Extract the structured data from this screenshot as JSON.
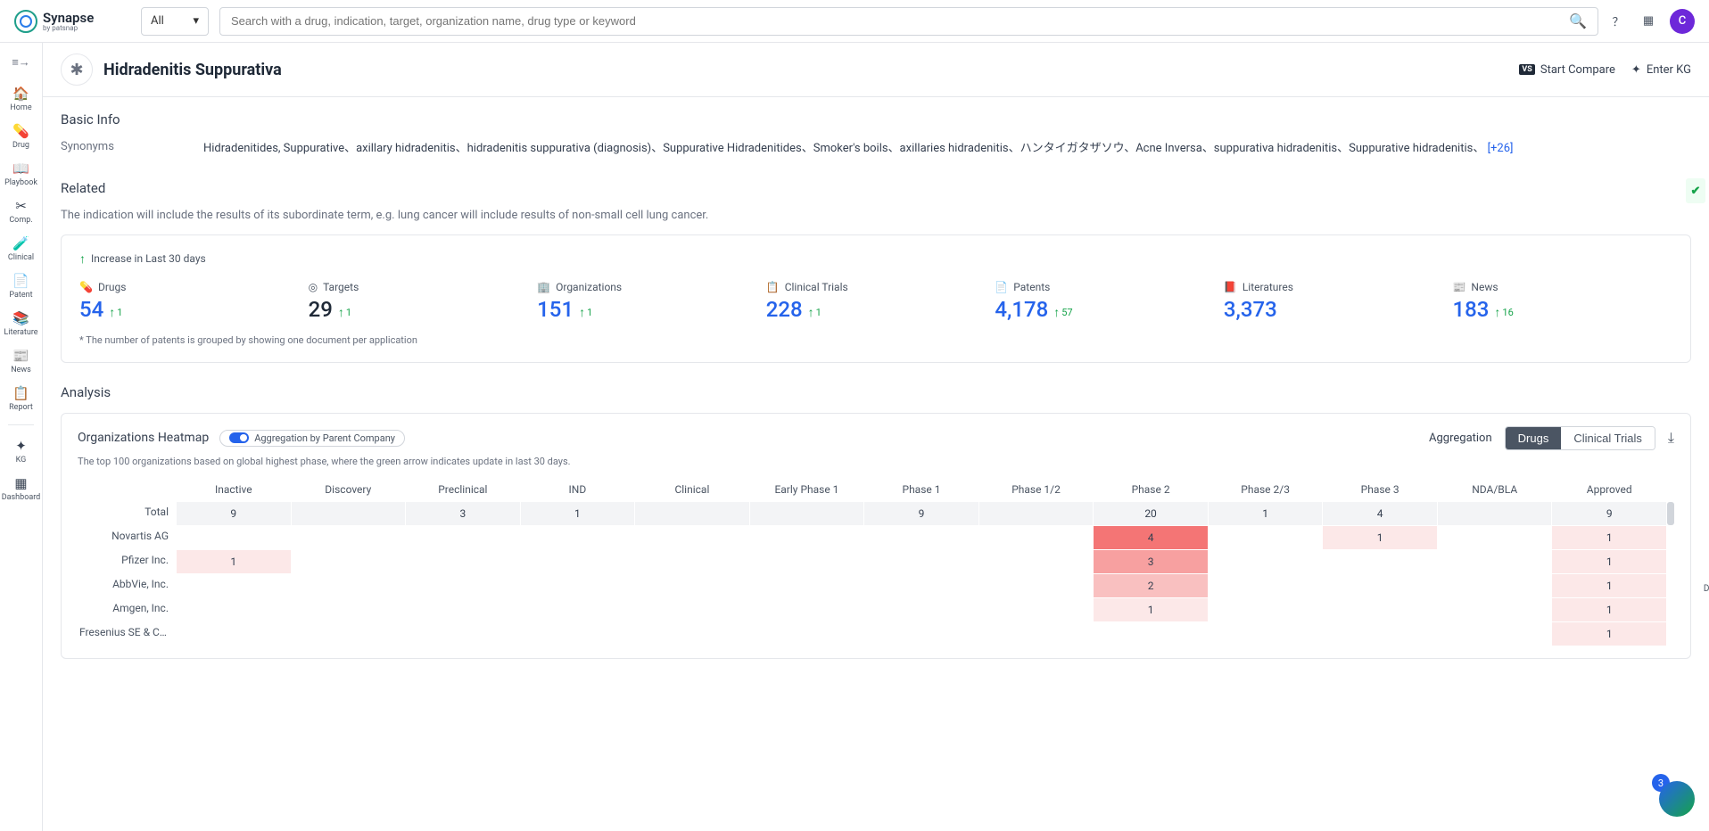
{
  "header": {
    "logo_name": "Synapse",
    "logo_sub": "by patsnap",
    "filter": "All",
    "search_placeholder": "Search with a drug, indication, target, organization name, drug type or keyword",
    "avatar_letter": "C"
  },
  "sidebar": {
    "items": [
      {
        "icon": "🏠",
        "label": "Home"
      },
      {
        "icon": "💊",
        "label": "Drug"
      },
      {
        "icon": "📖",
        "label": "Playbook"
      },
      {
        "icon": "✂",
        "label": "Comp."
      },
      {
        "icon": "🧪",
        "label": "Clinical"
      },
      {
        "icon": "📄",
        "label": "Patent"
      },
      {
        "icon": "📚",
        "label": "Literature"
      },
      {
        "icon": "📰",
        "label": "News"
      },
      {
        "icon": "📋",
        "label": "Report"
      }
    ],
    "bottom": [
      {
        "icon": "✦",
        "label": "KG"
      },
      {
        "icon": "▦",
        "label": "Dashboard"
      }
    ]
  },
  "page": {
    "title": "Hidradenitis Suppurativa",
    "compare_badge": "VS",
    "compare_label": "Start Compare",
    "kg_label": "Enter KG"
  },
  "basic_info": {
    "title": "Basic Info",
    "synonyms_label": "Synonyms",
    "synonyms_text": "Hidradenitides, Suppurative、axillary hidradenitis、hidradenitis suppurativa (diagnosis)、Suppurative Hidradenitides、Smoker's boils、axillaries hidradenitis、ハンタイガタザソウ、Acne Inversa、suppurativa hidradenitis、Suppurative hidradenitis、",
    "synonyms_more": "[+26]"
  },
  "related": {
    "title": "Related",
    "note": "The indication will include the results of its subordinate term, e.g. lung cancer will include results of non-small cell lung cancer.",
    "increase_label": "Increase in Last 30 days",
    "stats": [
      {
        "icon": "💊",
        "label": "Drugs",
        "value": "54",
        "delta": "1",
        "link": true
      },
      {
        "icon": "◎",
        "label": "Targets",
        "value": "29",
        "delta": "1",
        "link": false
      },
      {
        "icon": "🏢",
        "label": "Organizations",
        "value": "151",
        "delta": "1",
        "link": true
      },
      {
        "icon": "📋",
        "label": "Clinical Trials",
        "value": "228",
        "delta": "1",
        "link": true
      },
      {
        "icon": "📄",
        "label": "Patents",
        "value": "4,178",
        "delta": "57",
        "link": true
      },
      {
        "icon": "📕",
        "label": "Literatures",
        "value": "3,373",
        "delta": "",
        "link": true
      },
      {
        "icon": "📰",
        "label": "News",
        "value": "183",
        "delta": "16",
        "link": true
      }
    ],
    "footnote": "* The number of patents is grouped by showing one document per application"
  },
  "analysis": {
    "title": "Analysis",
    "heatmap_title": "Organizations Heatmap",
    "agg_toggle_label": "Aggregation by Parent Company",
    "agg_label": "Aggregation",
    "tab_drugs": "Drugs",
    "tab_trials": "Clinical Trials",
    "note": "The top 100 organizations based on global highest phase, where the green arrow indicates update in last 30 days.",
    "columns": [
      "Inactive",
      "Discovery",
      "Preclinical",
      "IND",
      "Clinical",
      "Early Phase 1",
      "Phase 1",
      "Phase 1/2",
      "Phase 2",
      "Phase 2/3",
      "Phase 3",
      "NDA/BLA",
      "Approved"
    ],
    "rows": [
      {
        "label": "Total",
        "cells": [
          "9",
          "",
          "3",
          "1",
          "",
          "",
          "9",
          "",
          "20",
          "1",
          "4",
          "",
          "9"
        ],
        "is_total": true
      },
      {
        "label": "Novartis AG",
        "cells": [
          "",
          "",
          "",
          "",
          "",
          "",
          "",
          "",
          "4",
          "",
          "1",
          "",
          "1"
        ]
      },
      {
        "label": "Pfizer Inc.",
        "cells": [
          "1",
          "",
          "",
          "",
          "",
          "",
          "",
          "",
          "3",
          "",
          "",
          "",
          "1"
        ]
      },
      {
        "label": "AbbVie, Inc.",
        "cells": [
          "",
          "",
          "",
          "",
          "",
          "",
          "",
          "",
          "2",
          "",
          "",
          "",
          "1"
        ]
      },
      {
        "label": "Amgen, Inc.",
        "cells": [
          "",
          "",
          "",
          "",
          "",
          "",
          "",
          "",
          "1",
          "",
          "",
          "",
          "1"
        ]
      },
      {
        "label": "Fresenius SE & Co...",
        "cells": [
          "",
          "",
          "",
          "",
          "",
          "",
          "",
          "",
          "",
          "",
          "",
          "",
          "1"
        ]
      }
    ],
    "heat_colors": {
      "0": "transparent",
      "1": "#fce8e8",
      "2": "#f9c0c0",
      "3": "#f7a0a0",
      "4": "#f47575"
    },
    "legend_label": "Drugs",
    "legend_max": "4",
    "legend_min": "0"
  },
  "chat_badge": "3"
}
